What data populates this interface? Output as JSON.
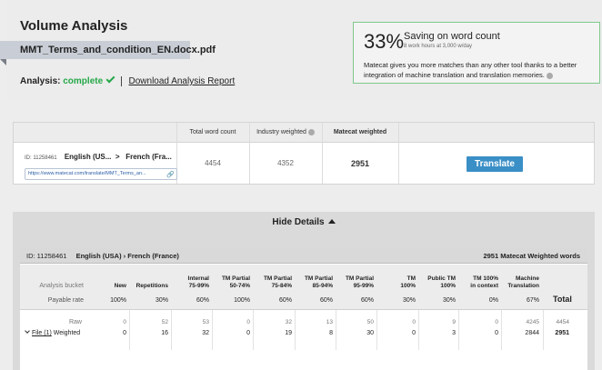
{
  "header": {
    "title": "Volume Analysis",
    "file_name": "MMT_Terms_and_condition_EN.docx.pdf",
    "analysis_label": "Analysis:",
    "analysis_status": "complete",
    "download_link": "Download Analysis Report"
  },
  "saving": {
    "percent": "33%",
    "title": "Saving on word count",
    "hours": "8 work hours at 3,000 w/day",
    "description": "Matecat gives you more matches than any other tool thanks to a better integration of machine translation and translation memories."
  },
  "summary": {
    "headers": [
      "Total word count",
      "Industry weighted",
      "Matecat weighted"
    ],
    "id": "ID: 11258461",
    "source_lang": "English (US...",
    "target_lang": "French (Fra...",
    "link": "https://www.matecat.com/translate/MMT_Terms_an...",
    "total_word_count": "4454",
    "industry_weighted": "4352",
    "matecat_weighted": "2951",
    "translate_button": "Translate"
  },
  "details": {
    "toggle_label": "Hide Details",
    "id": "ID: 11258461",
    "lang_pair": "English (USA)  ›  French (France)",
    "weighted_summary": "2951 Matecat Weighted words",
    "analysis_bucket_label": "Analysis bucket",
    "payable_rate_label": "Payable rate",
    "raw_label": "Raw",
    "weighted_label": "Weighted",
    "file_label": "File (1)",
    "total_label": "Total",
    "columns": [
      {
        "h1": "",
        "h2": "New",
        "rate": "100%",
        "raw": "0",
        "weighted": "0"
      },
      {
        "h1": "",
        "h2": "Repetitions",
        "rate": "30%",
        "raw": "52",
        "weighted": "16"
      },
      {
        "h1": "Internal",
        "h2": "75-99%",
        "rate": "60%",
        "raw": "53",
        "weighted": "32"
      },
      {
        "h1": "TM Partial",
        "h2": "50-74%",
        "rate": "100%",
        "raw": "0",
        "weighted": "0"
      },
      {
        "h1": "TM Partial",
        "h2": "75-84%",
        "rate": "60%",
        "raw": "32",
        "weighted": "19"
      },
      {
        "h1": "TM Partial",
        "h2": "85-94%",
        "rate": "60%",
        "raw": "13",
        "weighted": "8"
      },
      {
        "h1": "TM Partial",
        "h2": "95-99%",
        "rate": "60%",
        "raw": "50",
        "weighted": "30"
      },
      {
        "h1": "TM",
        "h2": "100%",
        "rate": "30%",
        "raw": "0",
        "weighted": "0"
      },
      {
        "h1": "Public TM",
        "h2": "100%",
        "rate": "30%",
        "raw": "9",
        "weighted": "3"
      },
      {
        "h1": "TM 100%",
        "h2": "in context",
        "rate": "0%",
        "raw": "0",
        "weighted": "0"
      },
      {
        "h1": "Machine",
        "h2": "Translation",
        "rate": "67%",
        "raw": "4245",
        "weighted": "2844"
      }
    ],
    "total_raw": "4454",
    "total_weighted": "2951"
  },
  "colors": {
    "accent": "#3a8fc6",
    "success": "#25a848",
    "saving_border": "#7fc98c"
  }
}
